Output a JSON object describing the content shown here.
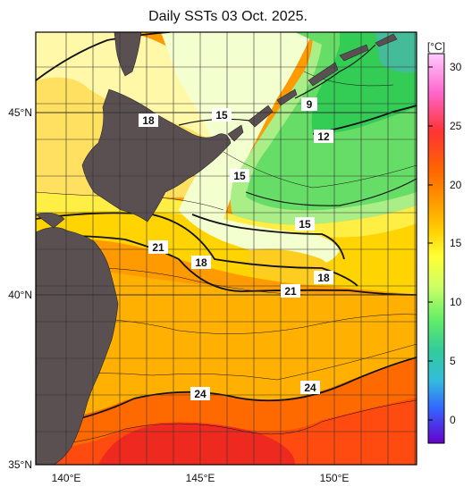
{
  "title": "Daily SSTs 03 Oct. 2025.",
  "colorbar": {
    "unit": "[°C]",
    "ticks": [
      "30",
      "25",
      "20",
      "15",
      "10",
      "5",
      "0"
    ],
    "colors": [
      "#ff99ff",
      "#ff66cc",
      "#ff3333",
      "#ff6600",
      "#ff9900",
      "#ffcc00",
      "#ffff33",
      "#ccff33",
      "#66ff33",
      "#33cc33",
      "#33cc99",
      "#33cccc",
      "#3399ff",
      "#3366ff",
      "#3333ff",
      "#6600cc"
    ]
  },
  "axes": {
    "lat_labels": [
      "45°N",
      "40°N",
      "35°N"
    ],
    "lon_labels": [
      "140°E",
      "145°E",
      "150°E"
    ]
  },
  "contour_labels": [
    "9",
    "12",
    "15",
    "15",
    "15",
    "18",
    "18",
    "18",
    "21",
    "21",
    "24",
    "24"
  ],
  "colors": {
    "land": "#5a5052",
    "frame": "#000000"
  }
}
